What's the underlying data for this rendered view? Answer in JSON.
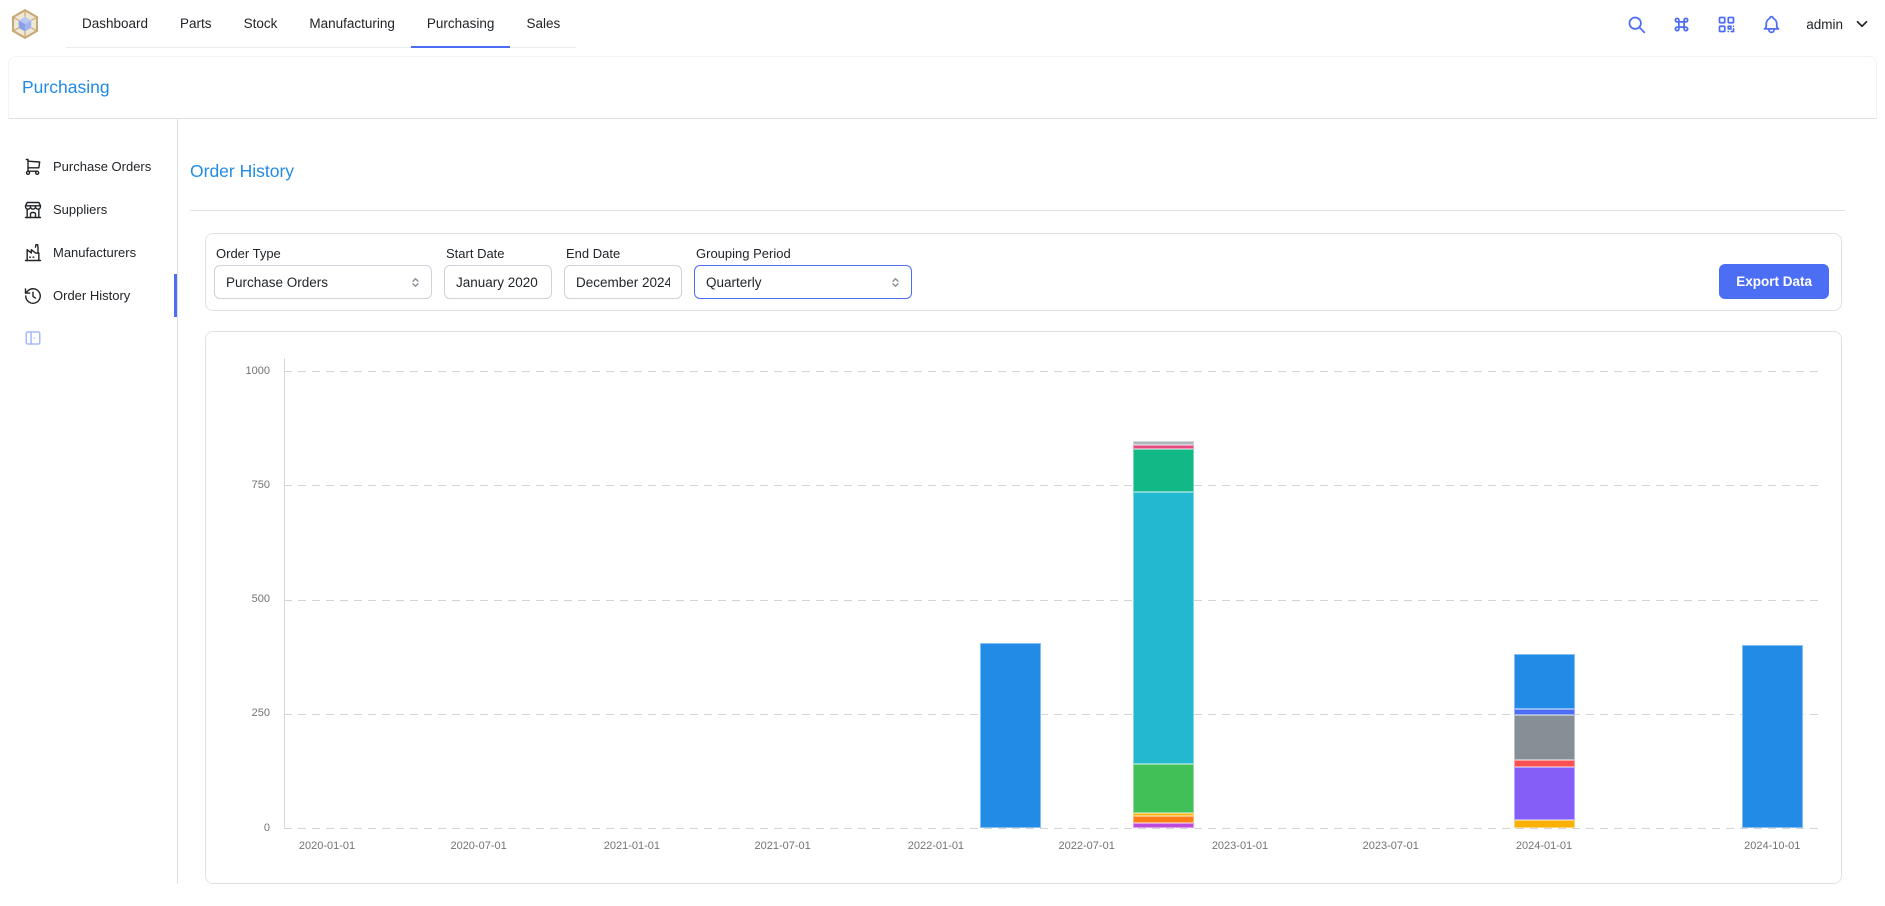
{
  "header": {
    "tabs": [
      {
        "label": "Dashboard",
        "active": false
      },
      {
        "label": "Parts",
        "active": false
      },
      {
        "label": "Stock",
        "active": false
      },
      {
        "label": "Manufacturing",
        "active": false
      },
      {
        "label": "Purchasing",
        "active": true
      },
      {
        "label": "Sales",
        "active": false
      }
    ],
    "user": "admin",
    "icons": [
      "search-icon",
      "command-icon",
      "qrcode-icon",
      "bell-icon",
      "chevron-down-icon"
    ]
  },
  "breadcrumb": {
    "title": "Purchasing"
  },
  "sidebar": {
    "items": [
      {
        "label": "Purchase Orders",
        "icon": "cart",
        "active": false
      },
      {
        "label": "Suppliers",
        "icon": "storefront",
        "active": false
      },
      {
        "label": "Manufacturers",
        "icon": "factory",
        "active": false
      },
      {
        "label": "Order History",
        "icon": "history",
        "active": true
      }
    ]
  },
  "main": {
    "title": "Order History",
    "filters": {
      "order_type": {
        "label": "Order Type",
        "value": "Purchase Orders"
      },
      "start_date": {
        "label": "Start Date",
        "value": "January 2020"
      },
      "end_date": {
        "label": "End Date",
        "value": "December 2024"
      },
      "grouping": {
        "label": "Grouping Period",
        "value": "Quarterly"
      },
      "export_label": "Export Data"
    }
  },
  "colors": {
    "accent_indigo": "#4c6ef5",
    "heading_blue": "#228be6",
    "border_gray": "#dee2e6",
    "axis_text": "#737373"
  },
  "chart_data": {
    "type": "bar",
    "stacked": true,
    "legend": "none",
    "grid": "dashed-horizontal",
    "ylim": [
      0,
      1090
    ],
    "yticks": [
      0,
      250,
      500,
      750,
      1000
    ],
    "xticks": [
      "2020-01-01",
      "2020-07-01",
      "2021-01-01",
      "2021-07-01",
      "2022-01-01",
      "2022-07-01",
      "2023-01-01",
      "2023-07-01",
      "2024-01-01",
      "2024-10-01"
    ],
    "x_domain_start": "2020-01-01",
    "bars": [
      {
        "date": "2022-04-01",
        "total": 405,
        "segments": [
          {
            "name": "blue",
            "color": "#228be6",
            "value": 405
          }
        ]
      },
      {
        "date": "2022-10-01",
        "total": 846,
        "segments": [
          {
            "name": "grape",
            "color": "#be4bdb",
            "value": 10
          },
          {
            "name": "orange",
            "color": "#fd7e14",
            "value": 17
          },
          {
            "name": "yellow",
            "color": "#fab005",
            "value": 6
          },
          {
            "name": "green",
            "color": "#40c057",
            "value": 106
          },
          {
            "name": "cyan",
            "color": "#22b8cf",
            "value": 596
          },
          {
            "name": "teal",
            "color": "#12b886",
            "value": 94
          },
          {
            "name": "pink",
            "color": "#e64980",
            "value": 9
          },
          {
            "name": "gray",
            "color": "#adb5bd",
            "value": 8
          }
        ]
      },
      {
        "date": "2024-01-01",
        "total": 381,
        "segments": [
          {
            "name": "yellow",
            "color": "#fab005",
            "value": 17
          },
          {
            "name": "violet",
            "color": "#845ef7",
            "value": 117
          },
          {
            "name": "red",
            "color": "#fa5252",
            "value": 15
          },
          {
            "name": "gray",
            "color": "#868e96",
            "value": 98
          },
          {
            "name": "indigo",
            "color": "#4c6ef5",
            "value": 13
          },
          {
            "name": "blue",
            "color": "#228be6",
            "value": 121
          }
        ]
      },
      {
        "date": "2024-10-01",
        "total": 400,
        "segments": [
          {
            "name": "blue",
            "color": "#228be6",
            "value": 400
          }
        ]
      }
    ]
  }
}
